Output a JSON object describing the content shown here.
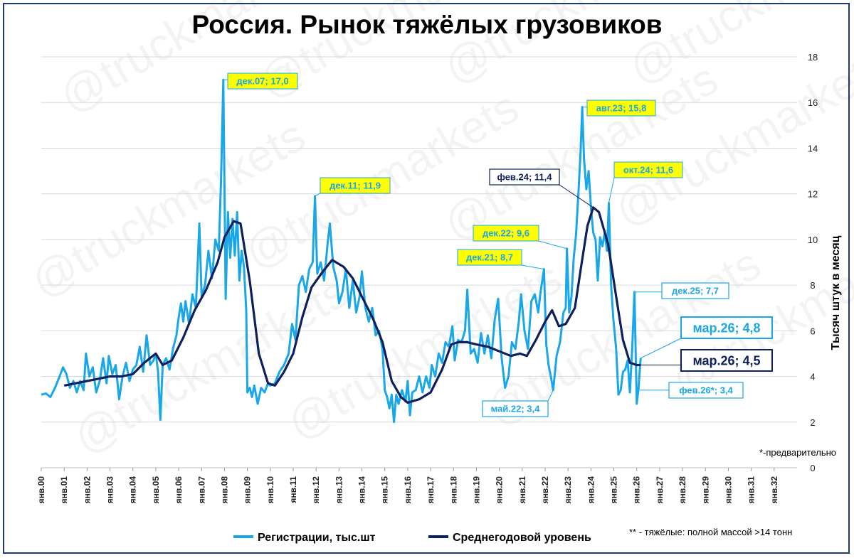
{
  "chart_data": {
    "type": "line",
    "title": "Россия. Рынок тяжёлых грузовиков",
    "ylabel": "Тысяч штук в месяц",
    "ylim": [
      0,
      18
    ],
    "yticks": [
      0,
      2,
      4,
      6,
      8,
      10,
      12,
      14,
      16,
      18
    ],
    "xlim": [
      2000,
      2033
    ],
    "xticks": [
      "янв.00",
      "янв.01",
      "янв.02",
      "янв.03",
      "янв.04",
      "янв.05",
      "янв.06",
      "янв.07",
      "янв.08",
      "янв.09",
      "янв.10",
      "янв.11",
      "янв.12",
      "янв.13",
      "янв.14",
      "янв.15",
      "янв.16",
      "янв.17",
      "янв.18",
      "янв.19",
      "янв.20",
      "янв.21",
      "янв.22",
      "янв.23",
      "янв.24",
      "янв.25",
      "янв.26",
      "янв.27",
      "янв.28",
      "янв.29",
      "янв.30",
      "янв.31",
      "янв.32"
    ],
    "grid": true,
    "legend_position": "bottom",
    "colors": {
      "registrations": "#1aa7e8",
      "average": "#0d1f5c",
      "callout_yellow": "#ffff00"
    },
    "series": [
      {
        "name": "Регистрации, тыс.шт",
        "color": "#1aa7e8",
        "points": [
          [
            2000.0,
            3.2
          ],
          [
            2000.2,
            3.25
          ],
          [
            2000.4,
            3.1
          ],
          [
            2000.6,
            3.5
          ],
          [
            2000.8,
            4.0
          ],
          [
            2000.95,
            4.4
          ],
          [
            2001.1,
            4.1
          ],
          [
            2001.25,
            3.5
          ],
          [
            2001.4,
            3.8
          ],
          [
            2001.55,
            3.3
          ],
          [
            2001.7,
            3.8
          ],
          [
            2001.85,
            3.4
          ],
          [
            2001.95,
            5.0
          ],
          [
            2002.1,
            4.0
          ],
          [
            2002.25,
            4.4
          ],
          [
            2002.4,
            3.3
          ],
          [
            2002.55,
            3.8
          ],
          [
            2002.7,
            4.8
          ],
          [
            2002.85,
            3.7
          ],
          [
            2002.95,
            4.9
          ],
          [
            2003.1,
            4.1
          ],
          [
            2003.25,
            4.5
          ],
          [
            2003.4,
            3.0
          ],
          [
            2003.55,
            4.0
          ],
          [
            2003.7,
            4.6
          ],
          [
            2003.85,
            3.8
          ],
          [
            2004.0,
            4.3
          ],
          [
            2004.15,
            4.5
          ],
          [
            2004.3,
            5.3
          ],
          [
            2004.45,
            4.2
          ],
          [
            2004.6,
            5.8
          ],
          [
            2004.75,
            4.5
          ],
          [
            2004.9,
            4.7
          ],
          [
            2005.0,
            5.0
          ],
          [
            2005.1,
            4.2
          ],
          [
            2005.2,
            2.1
          ],
          [
            2005.3,
            4.5
          ],
          [
            2005.45,
            4.8
          ],
          [
            2005.6,
            4.3
          ],
          [
            2005.75,
            5.2
          ],
          [
            2005.9,
            5.8
          ],
          [
            2006.0,
            6.6
          ],
          [
            2006.1,
            7.2
          ],
          [
            2006.2,
            6.4
          ],
          [
            2006.3,
            7.3
          ],
          [
            2006.45,
            6.3
          ],
          [
            2006.6,
            7.6
          ],
          [
            2006.75,
            7.0
          ],
          [
            2006.9,
            10.7
          ],
          [
            2007.0,
            7.5
          ],
          [
            2007.15,
            8.0
          ],
          [
            2007.3,
            9.5
          ],
          [
            2007.45,
            8.3
          ],
          [
            2007.6,
            10.0
          ],
          [
            2007.75,
            9.5
          ],
          [
            2007.85,
            12.6
          ],
          [
            2007.95,
            17.0
          ],
          [
            2008.05,
            7.4
          ],
          [
            2008.15,
            11.2
          ],
          [
            2008.25,
            9.2
          ],
          [
            2008.35,
            10.9
          ],
          [
            2008.45,
            9.3
          ],
          [
            2008.55,
            11.2
          ],
          [
            2008.65,
            8.2
          ],
          [
            2008.75,
            9.5
          ],
          [
            2008.85,
            8.8
          ],
          [
            2008.95,
            6.9
          ],
          [
            2009.0,
            3.3
          ],
          [
            2009.1,
            3.5
          ],
          [
            2009.2,
            3.1
          ],
          [
            2009.3,
            3.6
          ],
          [
            2009.45,
            2.8
          ],
          [
            2009.6,
            3.5
          ],
          [
            2009.75,
            3.3
          ],
          [
            2009.9,
            3.7
          ],
          [
            2010.0,
            3.6
          ],
          [
            2010.2,
            3.7
          ],
          [
            2010.4,
            4.2
          ],
          [
            2010.6,
            4.5
          ],
          [
            2010.8,
            5.0
          ],
          [
            2010.95,
            6.3
          ],
          [
            2011.1,
            5.6
          ],
          [
            2011.25,
            8.0
          ],
          [
            2011.4,
            8.4
          ],
          [
            2011.55,
            7.7
          ],
          [
            2011.7,
            8.7
          ],
          [
            2011.85,
            9.0
          ],
          [
            2011.95,
            11.9
          ],
          [
            2012.05,
            8.5
          ],
          [
            2012.2,
            9.0
          ],
          [
            2012.35,
            8.2
          ],
          [
            2012.5,
            9.8
          ],
          [
            2012.6,
            10.7
          ],
          [
            2012.75,
            8.8
          ],
          [
            2012.9,
            8.2
          ],
          [
            2013.0,
            7.2
          ],
          [
            2013.15,
            7.7
          ],
          [
            2013.3,
            8.7
          ],
          [
            2013.45,
            7.0
          ],
          [
            2013.6,
            8.2
          ],
          [
            2013.75,
            6.8
          ],
          [
            2013.9,
            7.5
          ],
          [
            2014.0,
            8.6
          ],
          [
            2014.15,
            7.0
          ],
          [
            2014.3,
            6.4
          ],
          [
            2014.45,
            7.0
          ],
          [
            2014.6,
            5.8
          ],
          [
            2014.75,
            6.0
          ],
          [
            2014.9,
            5.2
          ],
          [
            2015.0,
            3.4
          ],
          [
            2015.1,
            3.1
          ],
          [
            2015.2,
            2.6
          ],
          [
            2015.3,
            3.2
          ],
          [
            2015.4,
            2.0
          ],
          [
            2015.5,
            3.2
          ],
          [
            2015.6,
            2.8
          ],
          [
            2015.75,
            3.4
          ],
          [
            2015.9,
            2.9
          ],
          [
            2016.0,
            3.8
          ],
          [
            2016.1,
            2.3
          ],
          [
            2016.2,
            3.3
          ],
          [
            2016.35,
            3.4
          ],
          [
            2016.5,
            4.0
          ],
          [
            2016.65,
            3.3
          ],
          [
            2016.8,
            4.0
          ],
          [
            2016.95,
            3.5
          ],
          [
            2017.05,
            4.5
          ],
          [
            2017.2,
            4.0
          ],
          [
            2017.35,
            5.0
          ],
          [
            2017.5,
            4.6
          ],
          [
            2017.65,
            5.5
          ],
          [
            2017.8,
            5.3
          ],
          [
            2017.95,
            6.2
          ],
          [
            2018.05,
            4.7
          ],
          [
            2018.2,
            5.6
          ],
          [
            2018.35,
            5.5
          ],
          [
            2018.5,
            6.0
          ],
          [
            2018.6,
            7.8
          ],
          [
            2018.75,
            5.0
          ],
          [
            2018.9,
            5.2
          ],
          [
            2019.05,
            4.6
          ],
          [
            2019.2,
            5.9
          ],
          [
            2019.35,
            5.0
          ],
          [
            2019.5,
            5.8
          ],
          [
            2019.65,
            4.8
          ],
          [
            2019.8,
            6.5
          ],
          [
            2019.95,
            7.4
          ],
          [
            2020.1,
            4.8
          ],
          [
            2020.25,
            3.5
          ],
          [
            2020.4,
            4.0
          ],
          [
            2020.55,
            5.5
          ],
          [
            2020.7,
            5.2
          ],
          [
            2020.85,
            6.4
          ],
          [
            2020.95,
            7.6
          ],
          [
            2021.1,
            6.0
          ],
          [
            2021.25,
            5.2
          ],
          [
            2021.4,
            7.3
          ],
          [
            2021.55,
            7.6
          ],
          [
            2021.7,
            6.8
          ],
          [
            2021.8,
            7.7
          ],
          [
            2021.95,
            8.7
          ],
          [
            2022.05,
            5.4
          ],
          [
            2022.15,
            4.5
          ],
          [
            2022.25,
            4.0
          ],
          [
            2022.35,
            3.4
          ],
          [
            2022.5,
            4.9
          ],
          [
            2022.65,
            5.5
          ],
          [
            2022.8,
            6.8
          ],
          [
            2022.9,
            7.0
          ],
          [
            2022.95,
            9.6
          ],
          [
            2023.05,
            6.8
          ],
          [
            2023.15,
            7.5
          ],
          [
            2023.25,
            9.2
          ],
          [
            2023.35,
            10.2
          ],
          [
            2023.45,
            12.0
          ],
          [
            2023.55,
            13.9
          ],
          [
            2023.62,
            15.8
          ],
          [
            2023.7,
            13.5
          ],
          [
            2023.8,
            12.2
          ],
          [
            2023.9,
            13.0
          ],
          [
            2024.0,
            11.4
          ],
          [
            2024.1,
            10.3
          ],
          [
            2024.2,
            10.0
          ],
          [
            2024.3,
            8.2
          ],
          [
            2024.4,
            10.1
          ],
          [
            2024.5,
            9.7
          ],
          [
            2024.6,
            10.3
          ],
          [
            2024.7,
            9.5
          ],
          [
            2024.78,
            11.6
          ],
          [
            2024.88,
            8.0
          ],
          [
            2024.98,
            6.5
          ],
          [
            2025.1,
            5.2
          ],
          [
            2025.2,
            3.2
          ],
          [
            2025.3,
            3.4
          ],
          [
            2025.4,
            4.2
          ],
          [
            2025.5,
            4.3
          ],
          [
            2025.6,
            4.7
          ],
          [
            2025.7,
            3.3
          ],
          [
            2025.8,
            5.2
          ],
          [
            2025.9,
            7.7
          ],
          [
            2026.0,
            2.8
          ],
          [
            2026.07,
            3.4
          ],
          [
            2026.17,
            4.8
          ]
        ]
      },
      {
        "name": "Среднегодовой уровень",
        "color": "#0d1f5c",
        "points": [
          [
            2001.0,
            3.6
          ],
          [
            2001.5,
            3.7
          ],
          [
            2002.0,
            3.8
          ],
          [
            2002.5,
            3.9
          ],
          [
            2003.0,
            4.0
          ],
          [
            2003.5,
            4.0
          ],
          [
            2004.0,
            4.1
          ],
          [
            2004.5,
            4.6
          ],
          [
            2005.0,
            5.0
          ],
          [
            2005.3,
            4.5
          ],
          [
            2005.7,
            4.7
          ],
          [
            2006.2,
            5.7
          ],
          [
            2006.7,
            6.9
          ],
          [
            2007.2,
            7.8
          ],
          [
            2007.7,
            9.0
          ],
          [
            2008.0,
            10.1
          ],
          [
            2008.4,
            10.8
          ],
          [
            2008.7,
            10.7
          ],
          [
            2009.1,
            8.2
          ],
          [
            2009.5,
            5.0
          ],
          [
            2009.9,
            3.7
          ],
          [
            2010.2,
            3.6
          ],
          [
            2010.6,
            4.2
          ],
          [
            2011.0,
            5.0
          ],
          [
            2011.4,
            6.6
          ],
          [
            2011.8,
            7.9
          ],
          [
            2012.3,
            8.6
          ],
          [
            2012.7,
            9.1
          ],
          [
            2013.2,
            8.8
          ],
          [
            2013.6,
            8.3
          ],
          [
            2014.0,
            7.5
          ],
          [
            2014.5,
            6.5
          ],
          [
            2014.9,
            5.5
          ],
          [
            2015.3,
            3.8
          ],
          [
            2015.7,
            3.1
          ],
          [
            2016.0,
            2.85
          ],
          [
            2016.5,
            3.0
          ],
          [
            2017.0,
            3.3
          ],
          [
            2017.5,
            4.3
          ],
          [
            2017.9,
            5.4
          ],
          [
            2018.2,
            5.5
          ],
          [
            2018.6,
            5.5
          ],
          [
            2019.0,
            5.4
          ],
          [
            2019.5,
            5.3
          ],
          [
            2020.0,
            5.1
          ],
          [
            2020.5,
            4.9
          ],
          [
            2020.9,
            5.0
          ],
          [
            2021.2,
            4.9
          ],
          [
            2021.6,
            5.6
          ],
          [
            2022.0,
            6.4
          ],
          [
            2022.3,
            6.9
          ],
          [
            2022.6,
            6.2
          ],
          [
            2022.9,
            6.3
          ],
          [
            2023.3,
            7.0
          ],
          [
            2023.6,
            9.0
          ],
          [
            2023.85,
            10.6
          ],
          [
            2024.1,
            11.4
          ],
          [
            2024.35,
            11.2
          ],
          [
            2024.75,
            9.8
          ],
          [
            2025.1,
            7.5
          ],
          [
            2025.4,
            5.6
          ],
          [
            2025.7,
            4.6
          ],
          [
            2026.0,
            4.5
          ],
          [
            2026.17,
            4.5
          ]
        ]
      }
    ],
    "annotations": [
      {
        "id": "dec07",
        "text": "дек.07; 17,0",
        "style": "yellow"
      },
      {
        "id": "dec11",
        "text": "дек.11; 11,9",
        "style": "yellow"
      },
      {
        "id": "dec22",
        "text": "дек.22; 9,6",
        "style": "yellow"
      },
      {
        "id": "dec21",
        "text": "дек.21; 8,7",
        "style": "yellow"
      },
      {
        "id": "aug23",
        "text": "авг.23; 15,8",
        "style": "yellow"
      },
      {
        "id": "oct24",
        "text": "окт.24; 11,6",
        "style": "yellow"
      },
      {
        "id": "feb24",
        "text": "фев.24; 11,4",
        "style": "white-dark"
      },
      {
        "id": "dec25",
        "text": "дек.25; 7,7",
        "style": "white-blue"
      },
      {
        "id": "mar26a",
        "text": "мар.26; 4,8",
        "style": "big-blue"
      },
      {
        "id": "mar26b",
        "text": "мар.26; 4,5",
        "style": "big-dark"
      },
      {
        "id": "feb26",
        "text": "фев.26*; 3,4",
        "style": "white-blue"
      },
      {
        "id": "may22",
        "text": "май.22; 3,4",
        "style": "white-blue"
      }
    ],
    "notes": {
      "preliminary": "*-предварительно",
      "heavy_def": "** - тяжёлые: полной массой >14 тонн"
    },
    "watermark": "@truckmarkets"
  }
}
